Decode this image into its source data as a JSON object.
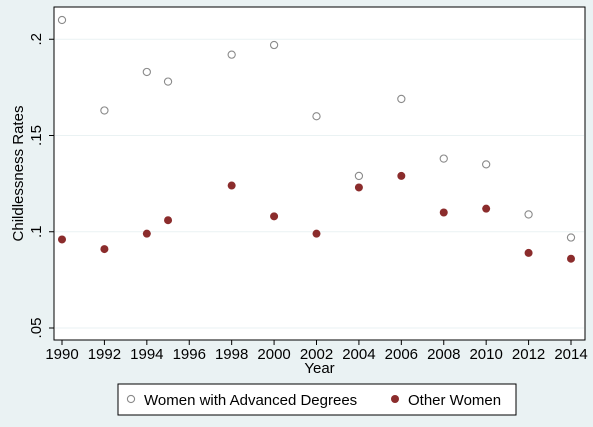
{
  "chart_data": {
    "type": "scatter",
    "title": "",
    "xlabel": "Year",
    "ylabel": "Childlessness Rates",
    "xlim": [
      1990,
      2014
    ],
    "ylim": [
      0.05,
      0.21
    ],
    "x_ticks": [
      1990,
      1992,
      1994,
      1996,
      1998,
      2000,
      2002,
      2004,
      2006,
      2008,
      2010,
      2012,
      2014
    ],
    "y_ticks": [
      0.05,
      0.1,
      0.15,
      0.2
    ],
    "y_tick_labels": [
      ".05",
      ".1",
      ".15",
      ".2"
    ],
    "grid": "horizontal",
    "legend_position": "bottom",
    "series": [
      {
        "name": "Women with Advanced Degrees",
        "marker": "hollow-circle",
        "color": "#8a8a8a",
        "points": [
          {
            "x": 1990,
            "y": 0.21
          },
          {
            "x": 1992,
            "y": 0.163
          },
          {
            "x": 1994,
            "y": 0.183
          },
          {
            "x": 1995,
            "y": 0.178
          },
          {
            "x": 1998,
            "y": 0.192
          },
          {
            "x": 2000,
            "y": 0.197
          },
          {
            "x": 2002,
            "y": 0.16
          },
          {
            "x": 2004,
            "y": 0.129
          },
          {
            "x": 2006,
            "y": 0.169
          },
          {
            "x": 2008,
            "y": 0.138
          },
          {
            "x": 2010,
            "y": 0.135
          },
          {
            "x": 2012,
            "y": 0.109
          },
          {
            "x": 2014,
            "y": 0.097
          }
        ]
      },
      {
        "name": "Other Women",
        "marker": "filled-circle",
        "color": "#8b2c2c",
        "points": [
          {
            "x": 1990,
            "y": 0.096
          },
          {
            "x": 1992,
            "y": 0.091
          },
          {
            "x": 1994,
            "y": 0.099
          },
          {
            "x": 1995,
            "y": 0.106
          },
          {
            "x": 1998,
            "y": 0.124
          },
          {
            "x": 2000,
            "y": 0.108
          },
          {
            "x": 2002,
            "y": 0.099
          },
          {
            "x": 2004,
            "y": 0.123
          },
          {
            "x": 2006,
            "y": 0.129
          },
          {
            "x": 2008,
            "y": 0.11
          },
          {
            "x": 2010,
            "y": 0.112
          },
          {
            "x": 2012,
            "y": 0.089
          },
          {
            "x": 2014,
            "y": 0.086
          }
        ]
      }
    ]
  },
  "colors": {
    "page_background": "#eaf2f3",
    "plot_background": "#ffffff",
    "gridline": "#eaf2f3"
  }
}
